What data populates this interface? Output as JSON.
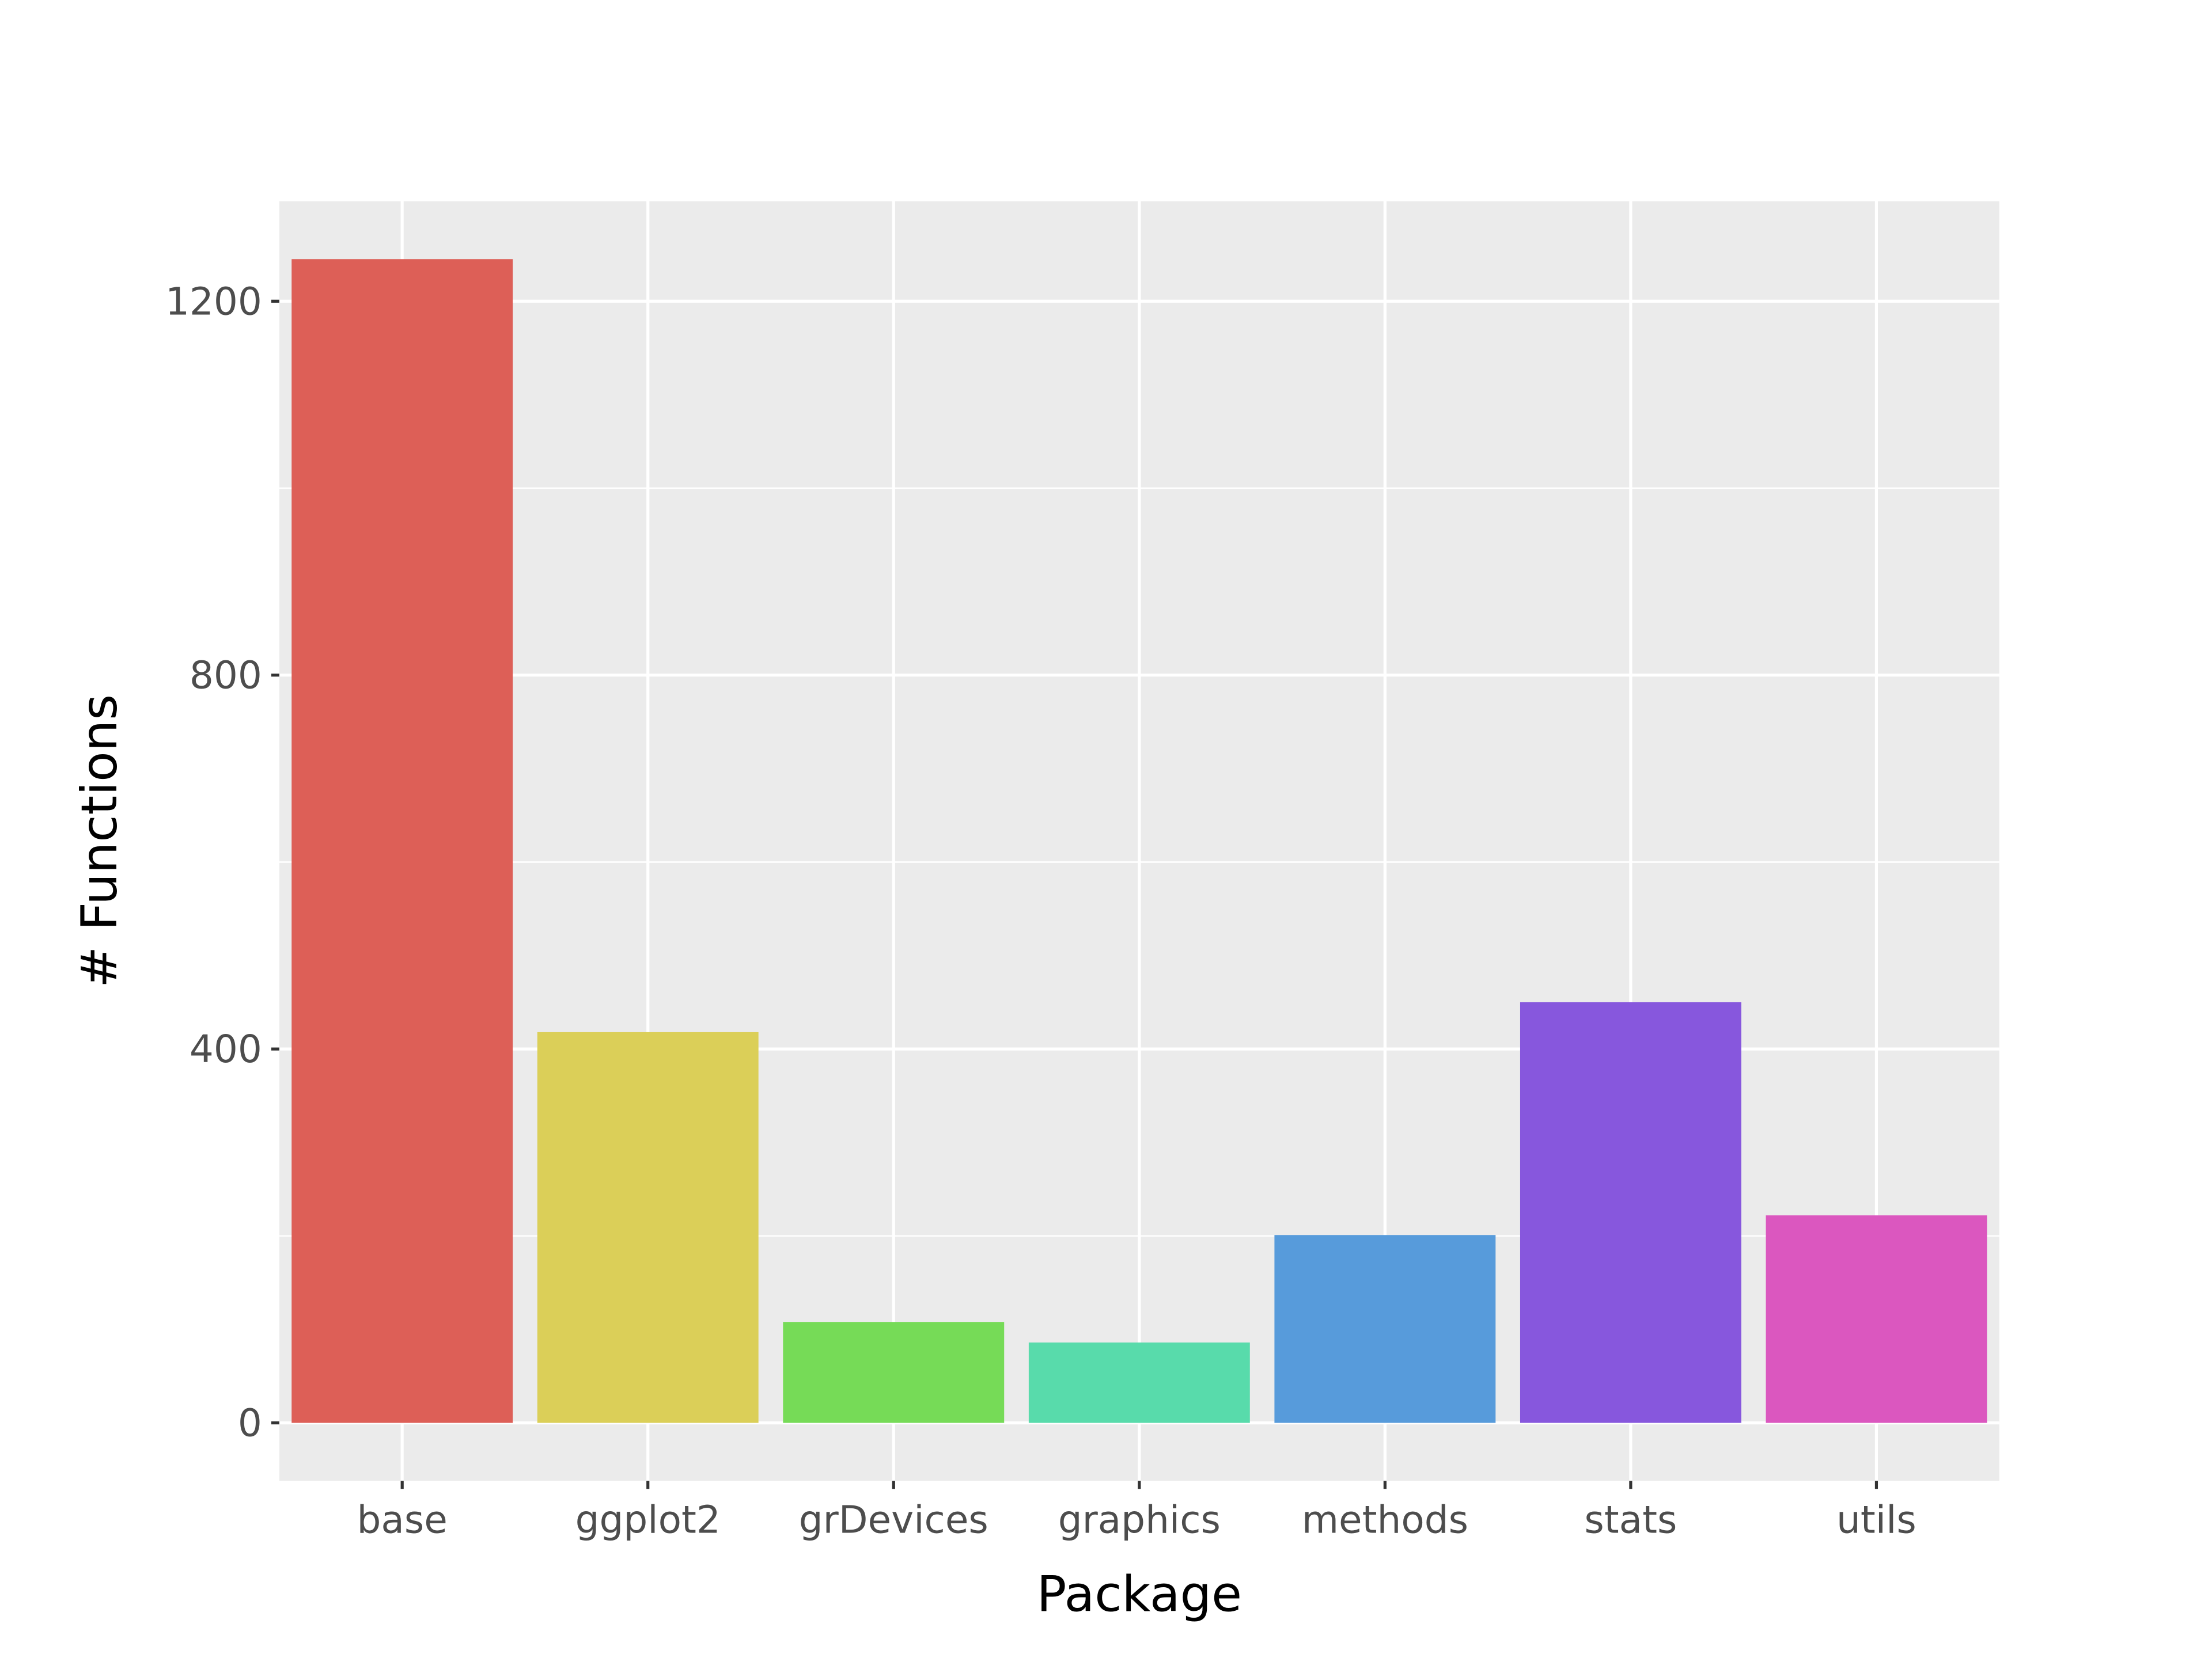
{
  "chart_data": {
    "type": "bar",
    "title": "",
    "xlabel": "Package",
    "ylabel": "# Functions",
    "categories": [
      "base",
      "ggplot2",
      "grDevices",
      "graphics",
      "methods",
      "stats",
      "utils"
    ],
    "values": [
      1245,
      418,
      108,
      86,
      201,
      450,
      222
    ],
    "colors": [
      "#dd5f57",
      "#dbcf58",
      "#76db57",
      "#58dbab",
      "#579bdb",
      "#8757dd",
      "#db57bf"
    ],
    "ylim": [
      -62,
      1307
    ],
    "yticks": [
      0,
      400,
      800,
      1200
    ],
    "yticks_minor": [
      200,
      600,
      1000
    ],
    "tick_labels_y": [
      "0",
      "400",
      "800",
      "1200"
    ],
    "grid": true,
    "legend": "none",
    "panel_background": "#ebebeb",
    "gridline_color": "#ffffff",
    "tick_color": "#333333"
  }
}
